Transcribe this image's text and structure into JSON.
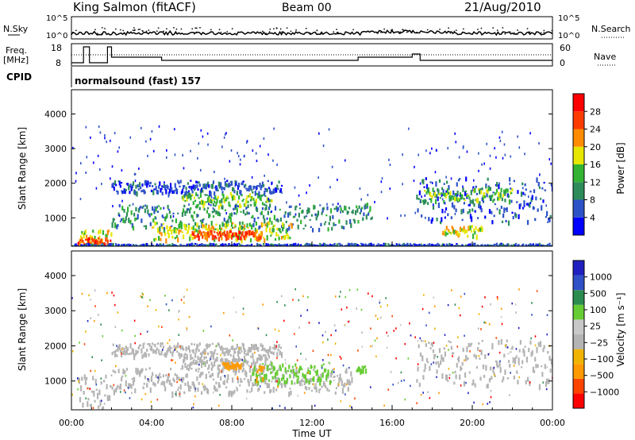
{
  "header": {
    "title": "King Salmon (fitACF)",
    "beam": "Beam 00",
    "date": "21/Aug/2010"
  },
  "panels": {
    "noise": {
      "left_label": "N.Sky",
      "right_label": "N.Search",
      "ticks": [
        "10^5",
        "10^0"
      ]
    },
    "freq": {
      "left_label_1": "Freq.",
      "left_label_2": "[MHz]",
      "left_ticks": [
        "18",
        "8"
      ],
      "right_label": "Nave",
      "right_ticks": [
        "60",
        "0"
      ]
    },
    "cpid": {
      "label": "CPID",
      "value": "normalsound (fast) 157"
    }
  },
  "colors": {
    "power_scale": [
      "#0000ff",
      "#2d52c8",
      "#2d8c5a",
      "#32b432",
      "#e6e600",
      "#ff8c00",
      "#ff3c00",
      "#ff0000"
    ],
    "velocity_scale": [
      "#ff0000",
      "#ff4400",
      "#ff9900",
      "#f0b400",
      "#b4b4b4",
      "#c8c8c8",
      "#66cc33",
      "#2c8c50",
      "#3050c8",
      "#2020c0"
    ],
    "ground_scatter": "#b4b4b4"
  },
  "chart_data": [
    {
      "type": "heatmap",
      "title": "",
      "xlabel": "Time UT",
      "ylabel": "Slant Range [km]",
      "x_ticks": [
        "00:00",
        "04:00",
        "08:00",
        "12:00",
        "16:00",
        "20:00",
        "00:00"
      ],
      "y_ticks": [
        "1000",
        "2000",
        "3000",
        "4000"
      ],
      "ylim": [
        180,
        4700
      ],
      "colorbar_label": "Power [dB]",
      "colorbar_ticks": [
        "4",
        "8",
        "12",
        "16",
        "20",
        "24",
        "28"
      ],
      "colorbar_range": [
        0,
        30
      ],
      "regions": [
        {
          "t0": 0.3,
          "t1": 2.0,
          "r0": 250,
          "r1": 700,
          "level": 4
        },
        {
          "t0": 0.3,
          "t1": 2.0,
          "r0": 250,
          "r1": 450,
          "level": 6
        },
        {
          "t0": 2.0,
          "t1": 14.0,
          "r0": 700,
          "r1": 1400,
          "level": 2
        },
        {
          "t0": 4.0,
          "t1": 11.0,
          "r0": 400,
          "r1": 900,
          "level": 4
        },
        {
          "t0": 6.0,
          "t1": 9.5,
          "r0": 450,
          "r1": 650,
          "level": 6
        },
        {
          "t0": 5.5,
          "t1": 10.0,
          "r0": 1350,
          "r1": 1750,
          "level": 3
        },
        {
          "t0": 2.0,
          "t1": 10.5,
          "r0": 1750,
          "r1": 2100,
          "level": 1
        },
        {
          "t0": 14.0,
          "t1": 15.0,
          "r0": 900,
          "r1": 1500,
          "level": 2
        },
        {
          "t0": 17.2,
          "t1": 24.0,
          "r0": 900,
          "r1": 2200,
          "level": 1
        },
        {
          "t0": 17.5,
          "t1": 22.0,
          "r0": 1500,
          "r1": 1900,
          "level": 3
        },
        {
          "t0": 18.5,
          "t1": 20.5,
          "r0": 500,
          "r1": 800,
          "level": 4
        },
        {
          "t0": 0.0,
          "t1": 24.0,
          "r0": 180,
          "r1": 280,
          "level": 1
        }
      ]
    },
    {
      "type": "heatmap",
      "title": "",
      "xlabel": "Time UT",
      "ylabel": "Slant Range [km]",
      "x_ticks": [
        "00:00",
        "04:00",
        "08:00",
        "12:00",
        "16:00",
        "20:00",
        "00:00"
      ],
      "y_ticks": [
        "1000",
        "2000",
        "3000",
        "4000"
      ],
      "ylim": [
        180,
        4700
      ],
      "colorbar_label": "Velocity [m s⁻¹]",
      "colorbar_ticks": [
        "1000",
        "500",
        "100",
        "25",
        "−25",
        "−100",
        "−500",
        "−1000"
      ],
      "regions": [
        {
          "t0": 2.0,
          "t1": 14.0,
          "r0": 700,
          "r1": 1400,
          "level": "ground"
        },
        {
          "t0": 5.5,
          "t1": 10.0,
          "r0": 1350,
          "r1": 1750,
          "level": "ground"
        },
        {
          "t0": 2.0,
          "t1": 10.5,
          "r0": 1750,
          "r1": 2100,
          "level": "ground"
        },
        {
          "t0": 9.0,
          "t1": 13.0,
          "r0": 1000,
          "r1": 1550,
          "level": "green"
        },
        {
          "t0": 9.2,
          "t1": 9.6,
          "r0": 1000,
          "r1": 1500,
          "level": "orange"
        },
        {
          "t0": 7.5,
          "t1": 8.5,
          "r0": 1450,
          "r1": 1550,
          "level": "orange"
        },
        {
          "t0": 17.2,
          "t1": 24.0,
          "r0": 900,
          "r1": 2200,
          "level": "ground"
        },
        {
          "t0": 0.3,
          "t1": 2.0,
          "r0": 250,
          "r1": 1200,
          "level": "ground"
        },
        {
          "t0": 14.2,
          "t1": 14.7,
          "r0": 1250,
          "r1": 1450,
          "level": "green"
        }
      ]
    }
  ]
}
